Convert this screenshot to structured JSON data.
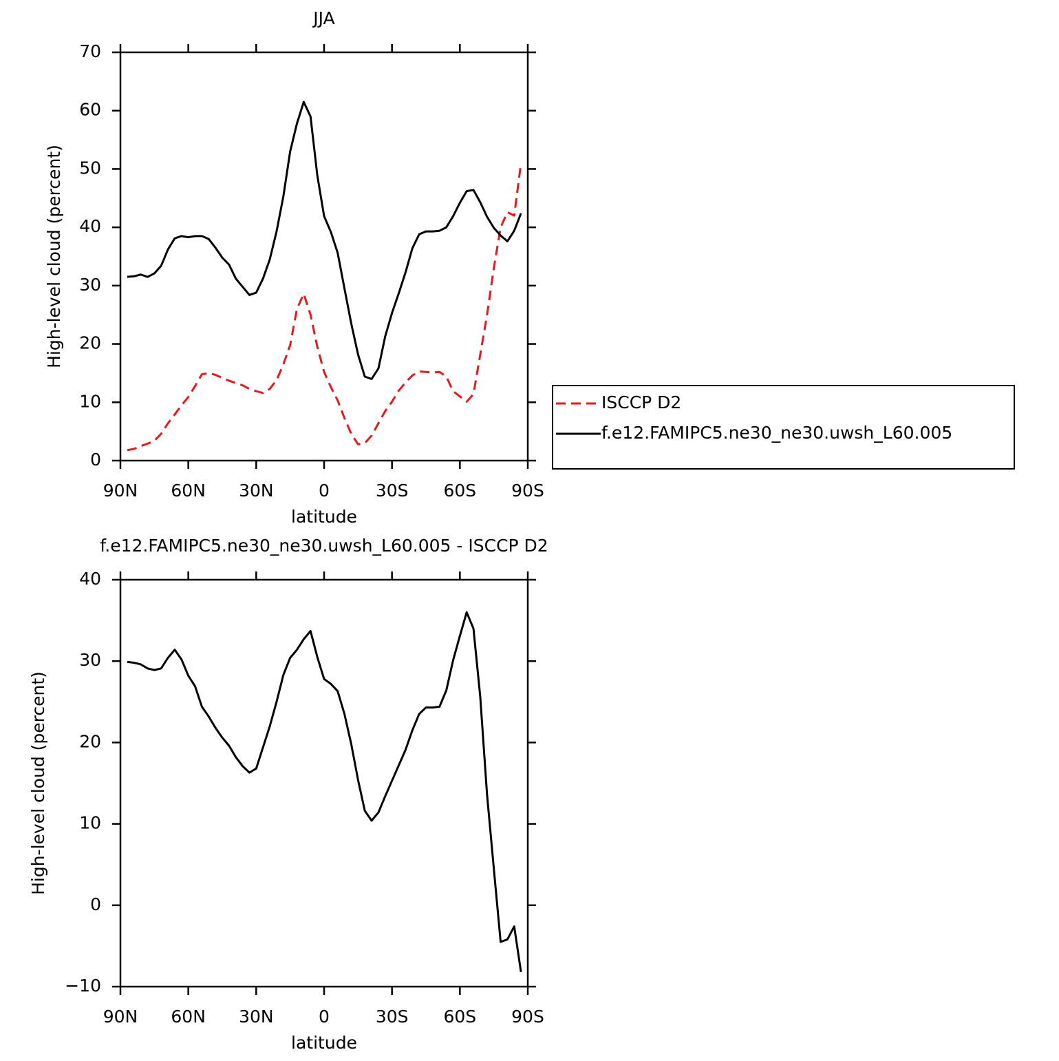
{
  "chart_data": [
    {
      "type": "line",
      "title": "JJA",
      "xlabel": "latitude",
      "ylabel": "High-level cloud (percent)",
      "x": [
        87,
        84,
        81,
        78,
        75,
        72,
        69,
        66,
        63,
        60,
        57,
        54,
        51,
        48,
        45,
        42,
        39,
        36,
        33,
        30,
        27,
        24,
        21,
        18,
        15,
        12,
        9,
        6,
        3,
        0,
        -3,
        -6,
        -9,
        -12,
        -15,
        -18,
        -21,
        -24,
        -27,
        -30,
        -33,
        -36,
        -39,
        -42,
        -45,
        -48,
        -51,
        -54,
        -57,
        -60,
        -63,
        -66,
        -69,
        -72,
        -75,
        -78,
        -81,
        -84,
        -87
      ],
      "xlim": [
        90,
        -90
      ],
      "xticks": [
        {
          "value": 90,
          "label": "90N"
        },
        {
          "value": 60,
          "label": "60N"
        },
        {
          "value": 30,
          "label": "30N"
        },
        0,
        {
          "value": -30,
          "label": "30S"
        },
        {
          "value": -60,
          "label": "60S"
        },
        {
          "value": -90,
          "label": "90S"
        }
      ],
      "ylim": [
        0,
        70
      ],
      "yticks": [
        0,
        10,
        20,
        30,
        40,
        50,
        60,
        70
      ],
      "legend": "right",
      "series": [
        {
          "name": "ISCCP D2",
          "color": "#e41a1c",
          "dash": "dashed",
          "values": [
            1.8,
            2.0,
            2.5,
            2.9,
            3.4,
            4.6,
            6.4,
            7.9,
            9.5,
            10.9,
            12.8,
            14.8,
            15.0,
            14.7,
            14.2,
            13.7,
            13.3,
            12.9,
            12.3,
            11.9,
            11.6,
            12.3,
            13.8,
            16.5,
            19.8,
            26.0,
            28.6,
            25.0,
            19.5,
            15.2,
            12.6,
            10.3,
            7.3,
            4.6,
            2.8,
            3.0,
            4.3,
            6.4,
            8.5,
            10.1,
            12.0,
            13.4,
            14.6,
            15.3,
            15.2,
            15.1,
            15.2,
            14.4,
            11.9,
            11.0,
            10.1,
            11.4,
            18.2,
            25.0,
            33.0,
            40.0,
            42.6,
            42.0,
            51.0
          ]
        },
        {
          "name": "f.e12.FAMIPC5.ne30_ne30.uwsh_L60.005",
          "color": "#000000",
          "dash": "solid",
          "values": [
            31.5,
            31.6,
            31.9,
            31.5,
            32.1,
            33.4,
            36.2,
            38.1,
            38.5,
            38.3,
            38.5,
            38.5,
            38.0,
            36.5,
            34.8,
            33.6,
            31.2,
            29.8,
            28.4,
            28.8,
            31.2,
            34.5,
            39.3,
            45.3,
            53.0,
            57.8,
            61.5,
            59.0,
            48.9,
            41.9,
            39.2,
            35.6,
            29.5,
            23.5,
            18.2,
            14.4,
            14.0,
            15.8,
            21.3,
            25.3,
            28.7,
            32.3,
            36.4,
            38.8,
            39.3,
            39.3,
            39.4,
            40.0,
            41.9,
            44.2,
            46.2,
            46.4,
            44.3,
            41.8,
            39.9,
            38.6,
            37.6,
            39.4,
            42.4
          ]
        }
      ]
    },
    {
      "type": "line",
      "title": "f.e12.FAMIPC5.ne30_ne30.uwsh_L60.005 - ISCCP D2",
      "xlabel": "latitude",
      "ylabel": "High-level cloud (percent)",
      "x": [
        87,
        84,
        81,
        78,
        75,
        72,
        69,
        66,
        63,
        60,
        57,
        54,
        51,
        48,
        45,
        42,
        39,
        36,
        33,
        30,
        27,
        24,
        21,
        18,
        15,
        12,
        9,
        6,
        3,
        0,
        -3,
        -6,
        -9,
        -12,
        -15,
        -18,
        -21,
        -24,
        -27,
        -30,
        -33,
        -36,
        -39,
        -42,
        -45,
        -48,
        -51,
        -54,
        -57,
        -60,
        -63,
        -66,
        -69,
        -72,
        -75,
        -78,
        -81,
        -84,
        -87
      ],
      "xlim": [
        90,
        -90
      ],
      "xticks": [
        {
          "value": 90,
          "label": "90N"
        },
        {
          "value": 60,
          "label": "60N"
        },
        {
          "value": 30,
          "label": "30N"
        },
        0,
        {
          "value": -30,
          "label": "30S"
        },
        {
          "value": -60,
          "label": "60S"
        },
        {
          "value": -90,
          "label": "90S"
        }
      ],
      "ylim": [
        -10,
        40
      ],
      "yticks": [
        {
          "value": -10,
          "label": "−10"
        },
        0,
        10,
        20,
        30,
        40
      ],
      "series": [
        {
          "color": "#000000",
          "dash": "solid",
          "values": [
            29.9,
            29.8,
            29.6,
            29.1,
            28.9,
            29.1,
            30.4,
            31.4,
            30.2,
            28.2,
            26.9,
            24.4,
            23.2,
            21.8,
            20.6,
            19.6,
            18.2,
            17.1,
            16.3,
            16.8,
            19.4,
            22.0,
            25.0,
            28.3,
            30.4,
            31.4,
            32.7,
            33.7,
            30.5,
            27.8,
            27.2,
            26.3,
            23.5,
            19.8,
            15.4,
            11.6,
            10.4,
            11.4,
            13.4,
            15.3,
            17.2,
            19.1,
            21.5,
            23.5,
            24.3,
            24.3,
            24.4,
            26.4,
            30.1,
            33.1,
            36.0,
            34.0,
            25.6,
            13.6,
            4.5,
            -4.5,
            -4.2,
            -2.6,
            -8.2
          ]
        }
      ]
    }
  ]
}
